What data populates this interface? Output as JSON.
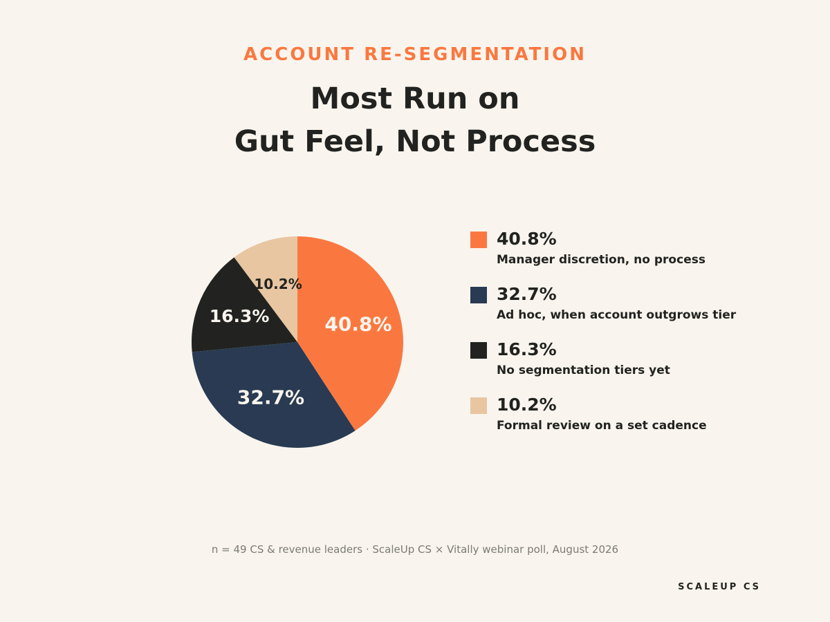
{
  "eyebrow": "ACCOUNT RE-SEGMENTATION",
  "title_lines": [
    "Most Run on",
    "Gut Feel, Not Process"
  ],
  "chart_data": {
    "type": "pie",
    "title": "Most Run on Gut Feel, Not Process",
    "labels": [
      "Manager discretion, no process",
      "Ad hoc, when account outgrows tier",
      "No segmentation tiers yet",
      "Formal review on a set cadence"
    ],
    "values": [
      40.8,
      32.7,
      16.3,
      10.2
    ],
    "value_labels": [
      "40.8%",
      "32.7%",
      "16.3%",
      "10.2%"
    ],
    "colors": [
      "#fa7840",
      "#293a52",
      "#222320",
      "#e8c6a1"
    ],
    "label_colors": [
      "#f9f5ee",
      "#f9f5ee",
      "#f9f5ee",
      "#222320"
    ],
    "start_angle": "12 o'clock",
    "direction": "clockwise",
    "legend_position": "right"
  },
  "footnote": "n = 49 CS & revenue leaders · ScaleUp CS × Vitally webinar poll, August 2026",
  "brand": "SCALEUP CS"
}
